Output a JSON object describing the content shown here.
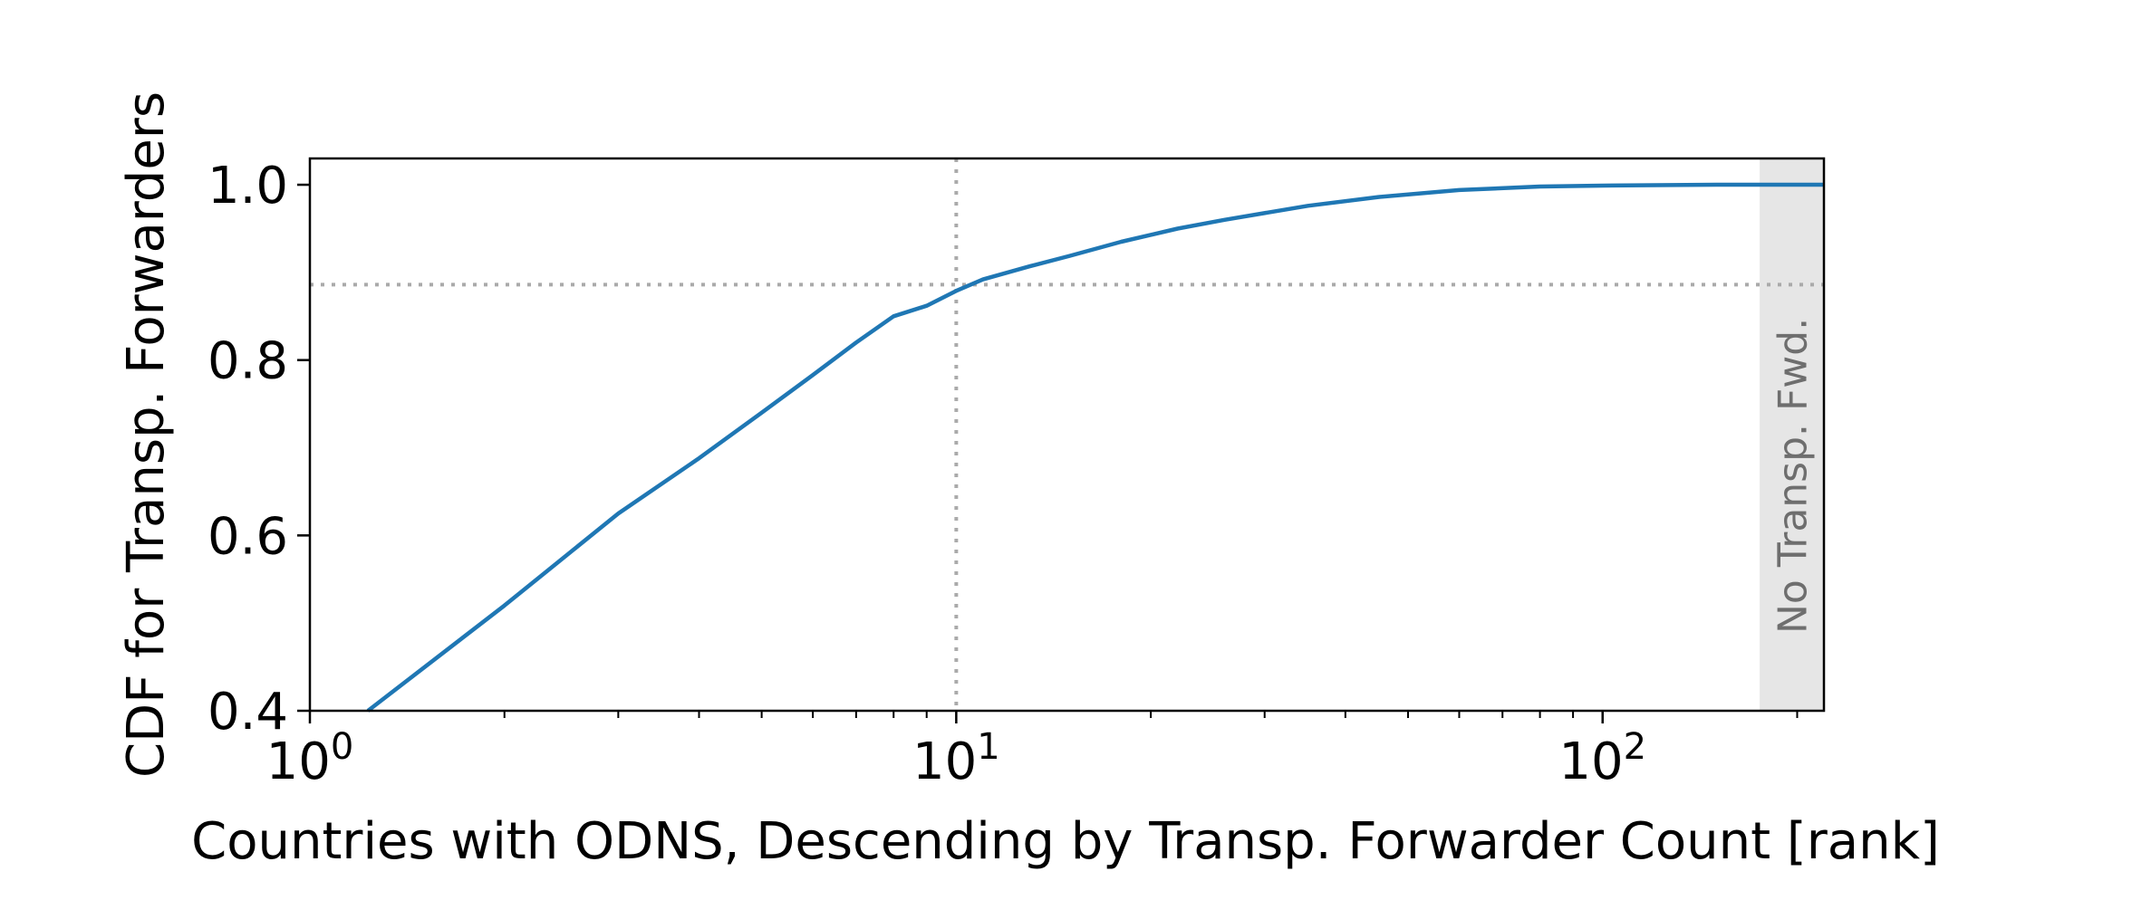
{
  "chart_data": {
    "type": "line",
    "xlabel": "Countries with ODNS, Descending by Transp. Forwarder Count [rank]",
    "ylabel": "CDF for Transp. Forwarders",
    "xscale": "log",
    "xlim": [
      1,
      220
    ],
    "ylim": [
      0.4,
      1.03
    ],
    "grid": false,
    "x_ticks": [
      {
        "value": 1,
        "base": "10",
        "exp": "0"
      },
      {
        "value": 10,
        "base": "10",
        "exp": "1"
      },
      {
        "value": 100,
        "base": "10",
        "exp": "2"
      }
    ],
    "y_ticks": [
      {
        "value": 0.4,
        "label": "0.4"
      },
      {
        "value": 0.6,
        "label": "0.6"
      },
      {
        "value": 0.8,
        "label": "0.8"
      },
      {
        "value": 1.0,
        "label": "1.0"
      }
    ],
    "series": [
      {
        "color": "#1f77b4",
        "x": [
          1.23,
          2,
          3,
          4,
          5,
          6,
          7,
          8,
          9,
          10,
          11,
          13,
          15,
          18,
          22,
          26,
          35,
          45,
          60,
          80,
          100,
          150,
          220
        ],
        "y": [
          0.4,
          0.52,
          0.625,
          0.688,
          0.74,
          0.783,
          0.82,
          0.85,
          0.862,
          0.879,
          0.892,
          0.907,
          0.919,
          0.935,
          0.95,
          0.96,
          0.976,
          0.986,
          0.994,
          0.998,
          0.999,
          1.0,
          1.0
        ]
      }
    ],
    "reference_lines": {
      "vertical_x": 10,
      "horizontal_y": 0.886,
      "color": "#aaaaaa",
      "style": "dotted"
    },
    "shaded_region": {
      "x_start": 175,
      "x_end": 220,
      "color": "#e6e6e6",
      "label": "No Transp. Fwd."
    }
  }
}
